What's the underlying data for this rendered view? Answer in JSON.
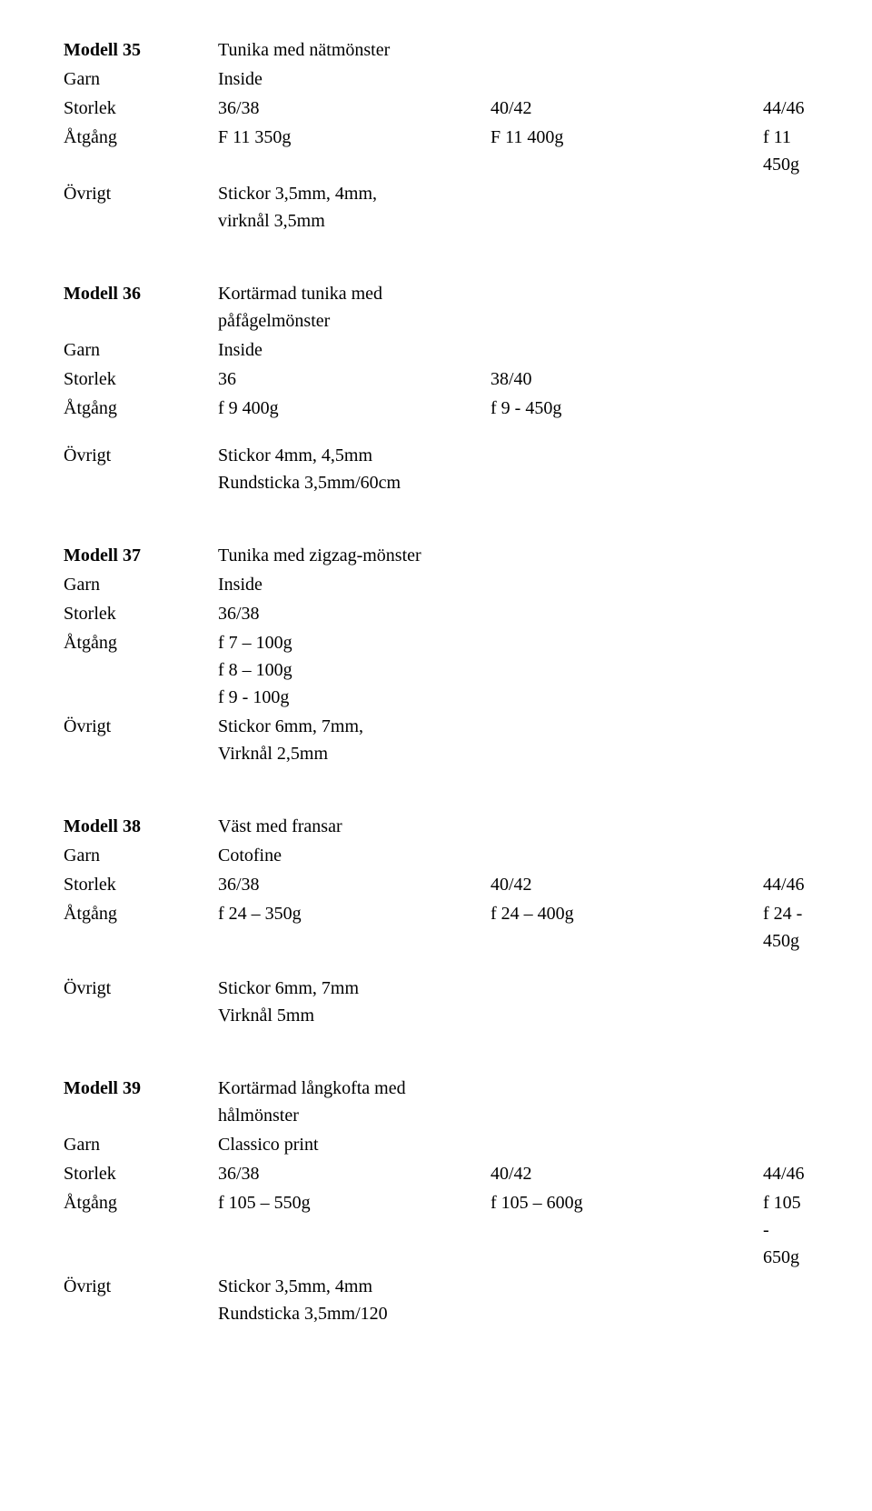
{
  "labels": {
    "garn": "Garn",
    "storlek": "Storlek",
    "atgang": "Åtgång",
    "ovrigt": "Övrigt"
  },
  "m35": {
    "header": "Modell 35",
    "title": "Tunika med nätmönster",
    "garn": "Inside",
    "size1": "36/38",
    "size2": "40/42",
    "size3": "44/46",
    "at1": "F 11 350g",
    "at2": "F 11 400g",
    "at3": "f 11 450g",
    "ovrigt": "Stickor 3,5mm, 4mm,\nvirknål 3,5mm"
  },
  "m36": {
    "header": "Modell 36",
    "title": "Kortärmad tunika med\npåfågelmönster",
    "garn": "Inside",
    "size1": "36",
    "size2": "38/40",
    "at1": "f 9 400g",
    "at2": "f 9 - 450g",
    "ovrigt": "Stickor 4mm, 4,5mm\nRundsticka 3,5mm/60cm"
  },
  "m37": {
    "header": "Modell 37",
    "title": "Tunika med zigzag-mönster",
    "garn": "Inside",
    "storlek": "36/38",
    "atgang": "f 7 – 100g\nf 8 – 100g\nf 9 - 100g",
    "ovrigt": "Stickor 6mm, 7mm,\nVirknål 2,5mm"
  },
  "m38": {
    "header": "Modell 38",
    "title": "Väst med fransar",
    "garn": "Cotofine",
    "size1": "36/38",
    "size2": "40/42",
    "size3": "44/46",
    "at1": "f 24 – 350g",
    "at2": "f 24 – 400g",
    "at3": "f 24 - 450g",
    "ovrigt": "Stickor 6mm, 7mm\nVirknål 5mm"
  },
  "m39": {
    "header": "Modell 39",
    "title": "Kortärmad långkofta med\nhålmönster",
    "garn": "Classico print",
    "size1": "36/38",
    "size2": "40/42",
    "size3": "44/46",
    "at1": "f 105 – 550g",
    "at2": "f 105 – 600g",
    "at3": "f 105 - 650g",
    "ovrigt": "Stickor 3,5mm, 4mm\nRundsticka 3,5mm/120"
  }
}
